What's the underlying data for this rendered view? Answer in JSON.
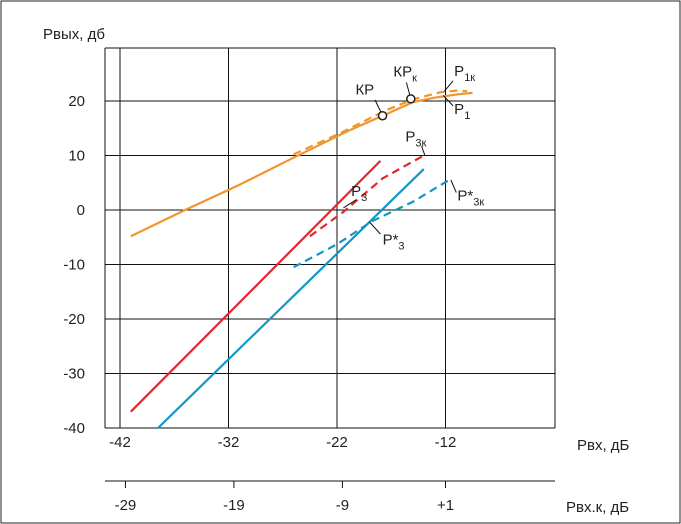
{
  "chart_data": {
    "type": "line",
    "x_range": [
      -42,
      -7
    ],
    "y_range": [
      -40,
      26
    ],
    "x_ticks": [
      "-42",
      "-32",
      "-22",
      "-12"
    ],
    "y_ticks": [
      "-40",
      "-30",
      "-20",
      "-10",
      "0",
      "10",
      "20"
    ],
    "y_label": "Рвых, дб",
    "x_label": "Рвх, дБ",
    "secondary_axis": {
      "label": "Рвх.к, дБ",
      "ticks": [
        {
          "label": "-29",
          "value": -41.5
        },
        {
          "label": "-19",
          "value": -31.5
        },
        {
          "label": "-9",
          "value": -21.5
        },
        {
          "label": "+1",
          "value": -12
        }
      ]
    },
    "grid": true,
    "colors": {
      "orange": "#f0962e",
      "red": "#e0282c",
      "blue": "#1296c8"
    },
    "series": [
      {
        "name": "P",
        "sub": "1",
        "color": "#f0962e",
        "dashed": false,
        "points": [
          [
            -41,
            -4.8
          ],
          [
            -36,
            0
          ],
          [
            -31,
            4.6
          ],
          [
            -26,
            9.6
          ],
          [
            -21,
            14.5
          ],
          [
            -17,
            18
          ],
          [
            -15,
            19.8
          ],
          [
            -13,
            20.6
          ],
          [
            -11,
            21.2
          ],
          [
            -9.5,
            21.5
          ]
        ],
        "label_at": [
          -11.2,
          17.6
        ],
        "leader": [
          [
            -11.3,
            19.1
          ],
          [
            -12.2,
            21
          ]
        ]
      },
      {
        "name": "P",
        "sub": "1к",
        "color": "#f0962e",
        "dashed": true,
        "points": [
          [
            -26,
            10.2
          ],
          [
            -21.5,
            14.3
          ],
          [
            -17.6,
            18.2
          ],
          [
            -15,
            20.3
          ],
          [
            -12.5,
            21.6
          ],
          [
            -11,
            21.9
          ],
          [
            -10,
            21.8
          ]
        ],
        "label_at": [
          -11.2,
          24.6
        ],
        "leader": [
          [
            -11.3,
            23.7
          ],
          [
            -12.1,
            21.8
          ]
        ]
      },
      {
        "name": "P",
        "sub": "3",
        "color": "#e0282c",
        "dashed": false,
        "points": [
          [
            -41,
            -37
          ],
          [
            -18,
            9
          ]
        ],
        "label_at": [
          -20.7,
          2.6
        ],
        "leader": [
          [
            -20.2,
            1.9
          ],
          [
            -21.4,
            0.4
          ]
        ]
      },
      {
        "name": "P",
        "sub": "3к",
        "color": "#e0282c",
        "dashed": true,
        "points": [
          [
            -24.5,
            -4.8
          ],
          [
            -21.5,
            -0.5
          ],
          [
            -17.8,
            5.8
          ],
          [
            -14,
            10
          ]
        ],
        "label_at": [
          -15.7,
          12.6
        ],
        "leader": [
          [
            -14.2,
            11.7
          ],
          [
            -13.9,
            10
          ]
        ]
      },
      {
        "name": "P*",
        "sub": "3к",
        "color": "#1296c8",
        "dashed": true,
        "points": [
          [
            -26,
            -10.5
          ],
          [
            -22,
            -6.3
          ],
          [
            -18.8,
            -2.1
          ],
          [
            -15,
            1.5
          ],
          [
            -11.5,
            5.7
          ]
        ],
        "label_at": [
          -10.9,
          1.7
        ],
        "leader": [
          [
            -11,
            3.2
          ],
          [
            -11.5,
            5.5
          ]
        ]
      },
      {
        "name": "P*",
        "sub": "3",
        "color": "#1296c8",
        "dashed": false,
        "points": [
          [
            -38.5,
            -40
          ],
          [
            -14,
            7.5
          ]
        ],
        "label_at": [
          -17.8,
          -6.3
        ],
        "leader": [
          [
            -18,
            -4.4
          ],
          [
            -19,
            -2.2
          ]
        ]
      }
    ],
    "annotations": [
      {
        "text": "КР",
        "sub": "",
        "marker": [
          -17.8,
          17.3
        ],
        "label_at": [
          -20.3,
          21.2
        ],
        "leader": [
          [
            -18.5,
            20.2
          ],
          [
            -17.8,
            17.3
          ]
        ]
      },
      {
        "text": "КР",
        "sub": "к",
        "marker": [
          -15.2,
          20.4
        ],
        "label_at": [
          -16.8,
          24.5
        ],
        "leader": [
          [
            -15.6,
            23.4
          ],
          [
            -15.2,
            20.4
          ]
        ]
      }
    ]
  }
}
